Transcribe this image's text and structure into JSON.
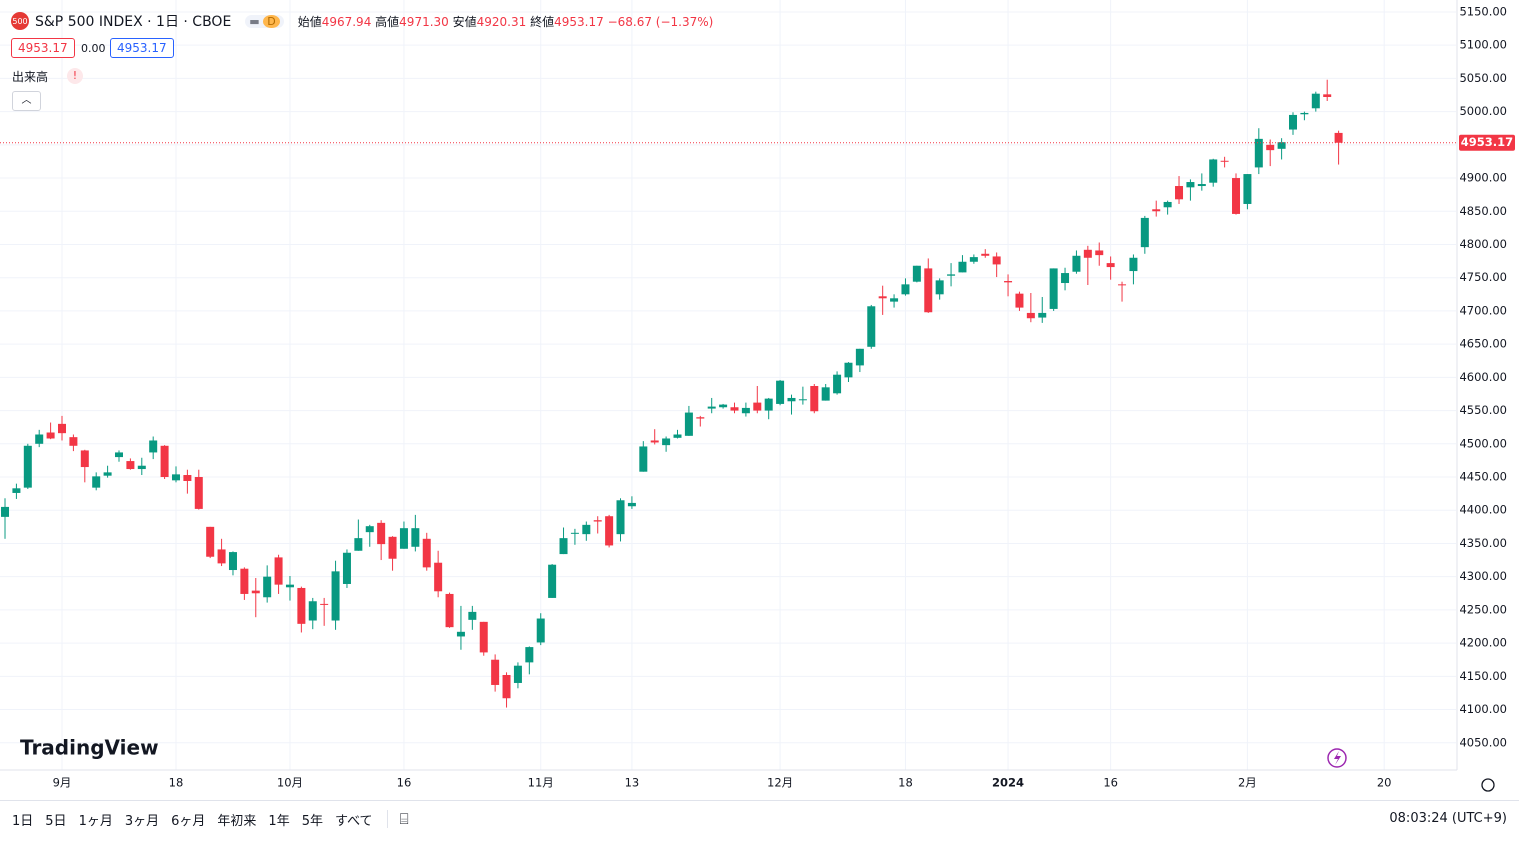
{
  "header": {
    "badge": "500",
    "title": "S&P 500 INDEX · 1日 · CBOE",
    "badge_d": "D",
    "open_label": "始値",
    "open": "4967.94",
    "high_label": "高値",
    "high": "4971.30",
    "low_label": "安値",
    "low": "4920.31",
    "close_label": "終値",
    "close": "4953.17",
    "change": "−68.67 (−1.37%)",
    "bid": "4953.17",
    "spread": "0.00",
    "ask": "4953.17",
    "volume_label": "出来高",
    "volume_alert": "!"
  },
  "logo": "TradingView",
  "toolbar": {
    "ranges": [
      "1日",
      "5日",
      "1ヶ月",
      "3ヶ月",
      "6ヶ月",
      "年初来",
      "1年",
      "5年",
      "すべて"
    ],
    "time": "08:03:24 (UTC+9)"
  },
  "chart_data": {
    "type": "candlestick",
    "up_color": "#089981",
    "down_color": "#f23645",
    "grid": true,
    "last_price": 4953.17,
    "xlim": [
      -0.44,
      127.3
    ],
    "xticks": [
      {
        "value": 5,
        "label": "9月"
      },
      {
        "value": 15,
        "label": "18"
      },
      {
        "value": 25,
        "label": "10月"
      },
      {
        "value": 35,
        "label": "16"
      },
      {
        "value": 47,
        "label": "11月"
      },
      {
        "value": 55,
        "label": "13"
      },
      {
        "value": 68,
        "label": "12月"
      },
      {
        "value": 79,
        "label": "18"
      },
      {
        "value": 88,
        "label": "2024"
      },
      {
        "value": 97,
        "label": "16"
      },
      {
        "value": 109,
        "label": "2月"
      },
      {
        "value": 121,
        "label": "20"
      }
    ],
    "ylim": [
      4009,
      5168
    ],
    "yticks": [
      {
        "value": 4050,
        "label": "4050.00"
      },
      {
        "value": 4100,
        "label": "4100.00"
      },
      {
        "value": 4150,
        "label": "4150.00"
      },
      {
        "value": 4200,
        "label": "4200.00"
      },
      {
        "value": 4250,
        "label": "4250.00"
      },
      {
        "value": 4300,
        "label": "4300.00"
      },
      {
        "value": 4350,
        "label": "4350.00"
      },
      {
        "value": 4400,
        "label": "4400.00"
      },
      {
        "value": 4450,
        "label": "4450.00"
      },
      {
        "value": 4500,
        "label": "4500.00"
      },
      {
        "value": 4550,
        "label": "4550.00"
      },
      {
        "value": 4600,
        "label": "4600.00"
      },
      {
        "value": 4650,
        "label": "4650.00"
      },
      {
        "value": 4700,
        "label": "4700.00"
      },
      {
        "value": 4750,
        "label": "4750.00"
      },
      {
        "value": 4800,
        "label": "4800.00"
      },
      {
        "value": 4850,
        "label": "4850.00"
      },
      {
        "value": 4900,
        "label": "4900.00"
      },
      {
        "value": 4950,
        "label": "4950.00"
      },
      {
        "value": 5000,
        "label": "5000.00"
      },
      {
        "value": 5050,
        "label": "5050.00"
      },
      {
        "value": 5100,
        "label": "5100.00"
      },
      {
        "value": 5150,
        "label": "5150.00"
      }
    ],
    "open": [
      4390,
      4426,
      4434,
      4500,
      4517,
      4530,
      4510,
      4490,
      4434,
      4452,
      4480,
      4474,
      4462,
      4487,
      4497,
      4445,
      4453,
      4450,
      4375,
      4341,
      4310,
      4312,
      4279,
      4269,
      4329,
      4284,
      4283,
      4234,
      4259,
      4234,
      4289,
      4339,
      4367,
      4381,
      4360,
      4342,
      4345,
      4357,
      4321,
      4274,
      4210,
      4235,
      4232,
      4175,
      4152,
      4140,
      4171,
      4201,
      4268,
      4334,
      4365,
      4364,
      4385,
      4391,
      4364,
      4406,
      4458,
      4505,
      4498,
      4509,
      4512,
      4540,
      4553,
      4555,
      4555,
      4546,
      4562,
      4550,
      4560,
      4564,
      4566,
      4587,
      4565,
      4576,
      4600,
      4618,
      4646,
      4722,
      4714,
      4725,
      4744,
      4764,
      4725,
      4753,
      4758,
      4774,
      4786,
      4782,
      4745,
      4726,
      4697,
      4690,
      4703,
      4742,
      4759,
      4792,
      4791,
      4772,
      4740,
      4760,
      4796,
      4853,
      4856,
      4888,
      4886,
      4888,
      4893,
      4926,
      4900,
      4861,
      4916,
      4950,
      4944,
      4973,
      4996,
      5005,
      5026,
      4967.94
    ],
    "high": [
      4418,
      4440,
      4500,
      4521,
      4532,
      4542,
      4514,
      4491,
      4457,
      4467,
      4490,
      4478,
      4479,
      4511,
      4498,
      4466,
      4461,
      4461,
      4375,
      4357,
      4338,
      4314,
      4298,
      4317,
      4333,
      4301,
      4285,
      4268,
      4268,
      4324,
      4341,
      4386,
      4378,
      4385,
      4361,
      4383,
      4393,
      4366,
      4339,
      4276,
      4256,
      4256,
      4232,
      4183,
      4156,
      4171,
      4195,
      4245,
      4319,
      4374,
      4372,
      4383,
      4391,
      4393,
      4418,
      4421,
      4504,
      4522,
      4511,
      4521,
      4557,
      4542,
      4569,
      4560,
      4562,
      4562,
      4587,
      4569,
      4596,
      4574,
      4586,
      4590,
      4590,
      4609,
      4623,
      4643,
      4709,
      4738,
      4725,
      4749,
      4768,
      4779,
      4749,
      4772,
      4784,
      4785,
      4793,
      4788,
      4755,
      4729,
      4727,
      4721,
      4764,
      4765,
      4791,
      4798,
      4803,
      4782,
      4744,
      4785,
      4843,
      4866,
      4866,
      4903,
      4898,
      4907,
      4929,
      4932,
      4907,
      4906,
      4975,
      4958,
      4960,
      4999,
      5000,
      5030,
      5048,
      4971.3
    ],
    "low": [
      4357,
      4417,
      4432,
      4495,
      4507,
      4505,
      4489,
      4442,
      4430,
      4449,
      4473,
      4461,
      4453,
      4477,
      4447,
      4442,
      4425,
      4401,
      4328,
      4316,
      4302,
      4265,
      4239,
      4261,
      4274,
      4264,
      4216,
      4221,
      4226,
      4220,
      4283,
      4339,
      4345,
      4325,
      4309,
      4342,
      4338,
      4309,
      4269,
      4223,
      4190,
      4220,
      4181,
      4127,
      4103,
      4132,
      4153,
      4197,
      4268,
      4334,
      4348,
      4354,
      4365,
      4344,
      4353,
      4402,
      4458,
      4499,
      4488,
      4508,
      4512,
      4526,
      4546,
      4553,
      4546,
      4541,
      4546,
      4537,
      4558,
      4544,
      4559,
      4546,
      4565,
      4574,
      4593,
      4608,
      4643,
      4694,
      4705,
      4723,
      4743,
      4697,
      4717,
      4737,
      4758,
      4771,
      4780,
      4751,
      4722,
      4700,
      4683,
      4682,
      4700,
      4731,
      4756,
      4739,
      4768,
      4747,
      4714,
      4740,
      4786,
      4842,
      4845,
      4861,
      4866,
      4881,
      4887,
      4916,
      4845,
      4853,
      4906,
      4918,
      4928,
      4965,
      4987,
      5000,
      5016,
      4920.31
    ],
    "close": [
      4405,
      4433,
      4497,
      4514,
      4508,
      4516,
      4497,
      4465,
      4451,
      4457,
      4487,
      4462,
      4467,
      4505,
      4450,
      4454,
      4444,
      4402,
      4330,
      4320,
      4337,
      4274,
      4275,
      4300,
      4288,
      4288,
      4229,
      4263,
      4258,
      4308,
      4336,
      4358,
      4376,
      4349,
      4327,
      4373,
      4373,
      4314,
      4278,
      4224,
      4217,
      4247,
      4186,
      4137,
      4117,
      4166,
      4194,
      4237,
      4318,
      4358,
      4366,
      4378,
      4383,
      4347,
      4415,
      4411,
      4496,
      4502,
      4508,
      4514,
      4547,
      4538,
      4556,
      4559,
      4550,
      4554,
      4550,
      4568,
      4595,
      4569,
      4567,
      4549,
      4585,
      4604,
      4622,
      4643,
      4707,
      4719,
      4719,
      4740,
      4768,
      4698,
      4746,
      4755,
      4774,
      4781,
      4783,
      4770,
      4743,
      4705,
      4689,
      4697,
      4764,
      4757,
      4783,
      4780,
      4784,
      4766,
      4739,
      4780,
      4840,
      4850,
      4864,
      4868,
      4894,
      4891,
      4928,
      4925,
      4846,
      4906,
      4959,
      4942,
      4954,
      4995,
      4998,
      5027,
      5022,
      4953.17
    ]
  }
}
